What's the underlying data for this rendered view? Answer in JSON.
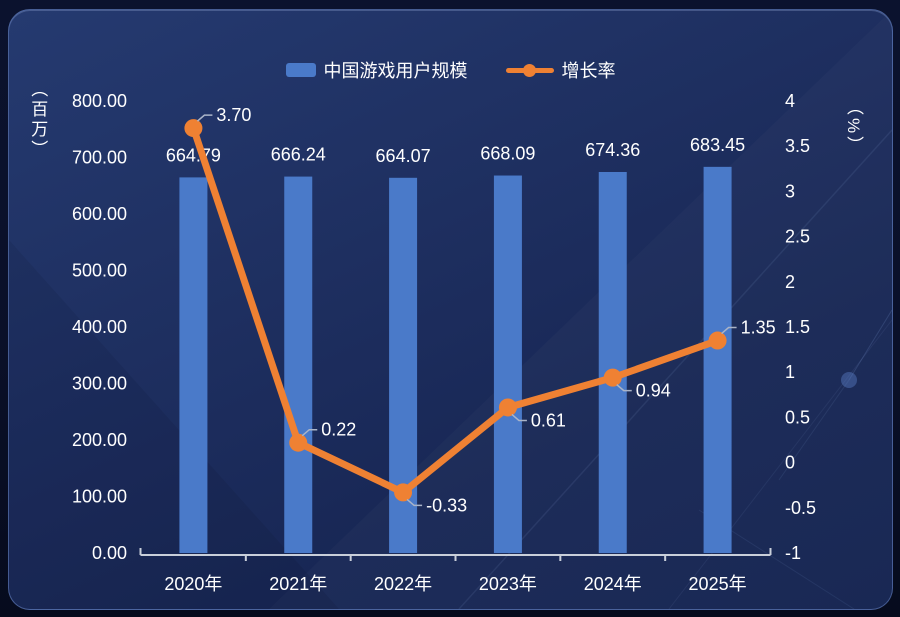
{
  "legend": {
    "items": [
      {
        "label": "中国游戏用户规模",
        "type": "bar",
        "color": "#4a7ac9"
      },
      {
        "label": "增长率",
        "type": "line",
        "color": "#ef8133"
      }
    ]
  },
  "chart_data": {
    "type": "bar",
    "subtype": "bar+line combo, dual y-axis",
    "categories": [
      "2020年",
      "2021年",
      "2022年",
      "2023年",
      "2024年",
      "2025年"
    ],
    "series": [
      {
        "name": "中国游戏用户规模",
        "type": "bar",
        "axis": "left",
        "color": "#4a7ac9",
        "values": [
          664.79,
          666.24,
          664.07,
          668.09,
          674.36,
          683.45
        ],
        "labels": [
          "664.79",
          "666.24",
          "664.07",
          "668.09",
          "674.36",
          "683.45"
        ]
      },
      {
        "name": "增长率",
        "type": "line",
        "axis": "right",
        "color": "#ef8133",
        "values": [
          3.7,
          0.22,
          -0.33,
          0.61,
          0.94,
          1.35
        ],
        "labels": [
          "3.70",
          "0.22",
          "-0.33",
          "0.61",
          "0.94",
          "1.35"
        ],
        "label_positions": [
          "above",
          "above",
          "below",
          "below",
          "below",
          "above"
        ]
      }
    ],
    "left_axis": {
      "name": "（百万）",
      "min": 0,
      "max": 800,
      "step": 100,
      "tick_labels": [
        "0.00",
        "100.00",
        "200.00",
        "300.00",
        "400.00",
        "500.00",
        "600.00",
        "700.00",
        "800.00"
      ]
    },
    "right_axis": {
      "name": "（%）",
      "min": -1,
      "max": 4,
      "step": 0.5,
      "tick_labels": [
        "-1",
        "-0.5",
        "0",
        "0.5",
        "1",
        "1.5",
        "2",
        "2.5",
        "3",
        "3.5",
        "4"
      ]
    },
    "grid": false,
    "legend_position": "top-center",
    "axis_line_color": "#c9cfda",
    "text_color": "#ffffff",
    "connector_color": "#aab4c8"
  }
}
